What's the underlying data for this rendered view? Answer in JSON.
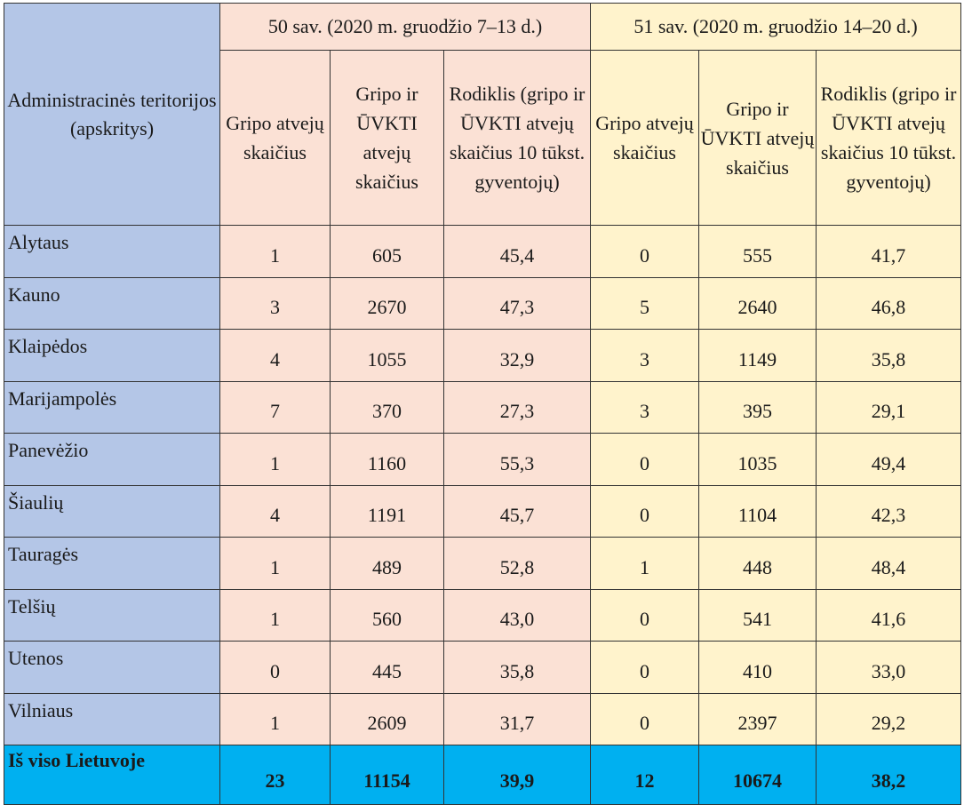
{
  "header": {
    "region_title": "Administracinės teritorijos (apskritys)",
    "week50_title": "50 sav. (2020 m. gruodžio 7–13 d.)",
    "week51_title": "51 sav. (2020 m. gruodžio 14–20 d.)",
    "col_flu": "Gripo atvejų skaičius",
    "col_flu_ari": "Gripo ir ŪVKTI atvejų skaičius",
    "col_rate": "Rodiklis (gripo ir ŪVKTI atvejų skaičius 10 tūkst. gyventojų)"
  },
  "rows": [
    {
      "name": "Alytaus",
      "w50": [
        "1",
        "605",
        "45,4"
      ],
      "w51": [
        "0",
        "555",
        "41,7"
      ]
    },
    {
      "name": "Kauno",
      "w50": [
        "3",
        "2670",
        "47,3"
      ],
      "w51": [
        "5",
        "2640",
        "46,8"
      ]
    },
    {
      "name": "Klaipėdos",
      "w50": [
        "4",
        "1055",
        "32,9"
      ],
      "w51": [
        "3",
        "1149",
        "35,8"
      ]
    },
    {
      "name": "Marijampolės",
      "w50": [
        "7",
        "370",
        "27,3"
      ],
      "w51": [
        "3",
        "395",
        "29,1"
      ]
    },
    {
      "name": "Panevėžio",
      "w50": [
        "1",
        "1160",
        "55,3"
      ],
      "w51": [
        "0",
        "1035",
        "49,4"
      ]
    },
    {
      "name": "Šiaulių",
      "w50": [
        "4",
        "1191",
        "45,7"
      ],
      "w51": [
        "0",
        "1104",
        "42,3"
      ]
    },
    {
      "name": "Tauragės",
      "w50": [
        "1",
        "489",
        "52,8"
      ],
      "w51": [
        "1",
        "448",
        "48,4"
      ]
    },
    {
      "name": "Telšių",
      "w50": [
        "1",
        "560",
        "43,0"
      ],
      "w51": [
        "0",
        "541",
        "41,6"
      ]
    },
    {
      "name": "Utenos",
      "w50": [
        "0",
        "445",
        "35,8"
      ],
      "w51": [
        "0",
        "410",
        "33,0"
      ]
    },
    {
      "name": "Vilniaus",
      "w50": [
        "1",
        "2609",
        "31,7"
      ],
      "w51": [
        "0",
        "2397",
        "29,2"
      ]
    }
  ],
  "total": {
    "name": "Iš viso Lietuvoje",
    "w50": [
      "23",
      "11154",
      "39,9"
    ],
    "w51": [
      "12",
      "10674",
      "38,2"
    ]
  }
}
